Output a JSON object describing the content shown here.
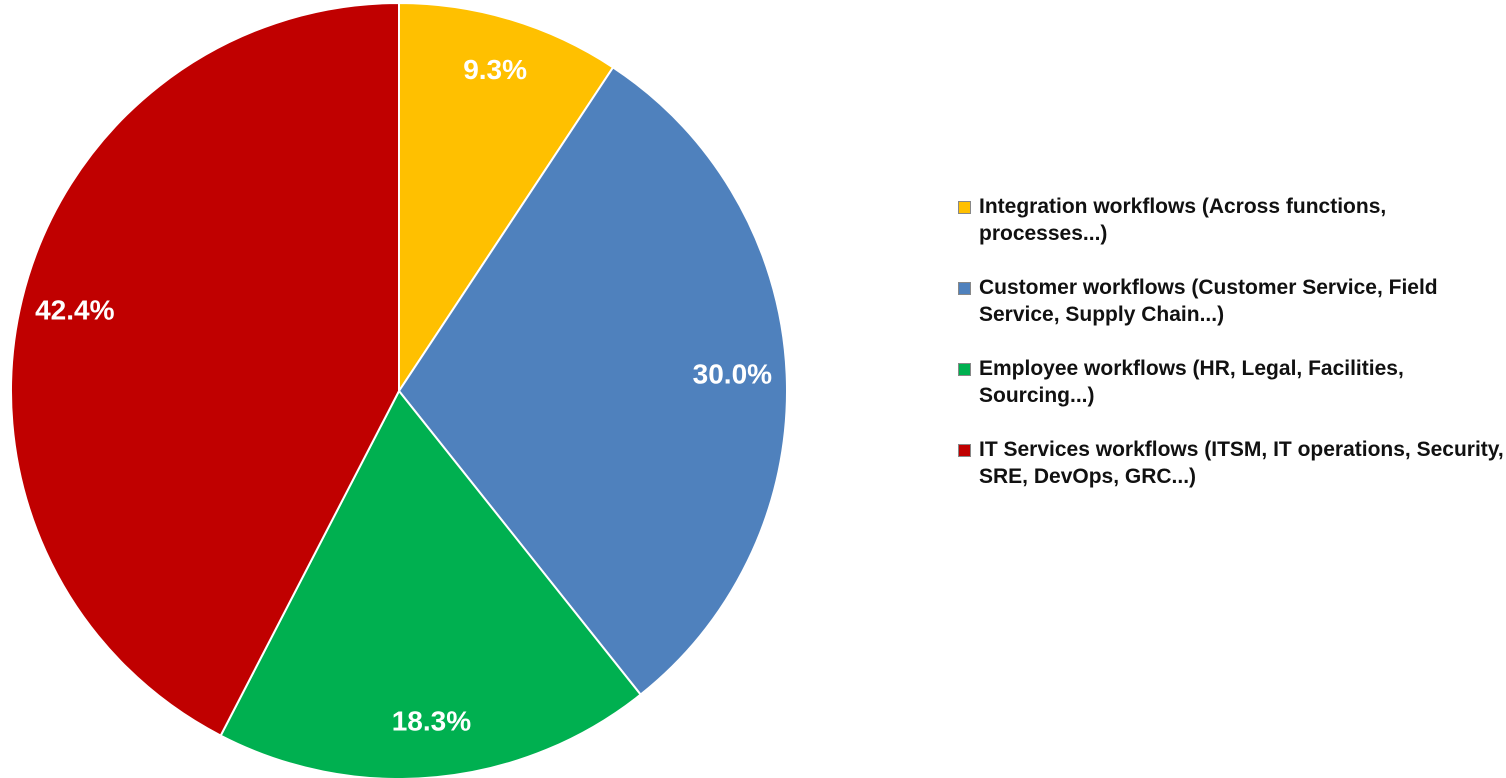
{
  "chart_data": {
    "type": "pie",
    "categories": [
      "Integration workflows (Across functions, processes...)",
      "Customer workflows (Customer Service, Field Service, Supply Chain...)",
      "Employee workflows (HR, Legal, Facilities, Sourcing...)",
      "IT Services workflows (ITSM, IT operations, Security, SRE, DevOps, GRC...)"
    ],
    "values": [
      9.3,
      30.0,
      18.3,
      42.4
    ],
    "value_labels": [
      "9.3%",
      "30.0%",
      "18.3%",
      "42.4%"
    ],
    "colors": [
      "#ffc000",
      "#4f81bd",
      "#00b050",
      "#c00000"
    ],
    "legend": "right"
  }
}
